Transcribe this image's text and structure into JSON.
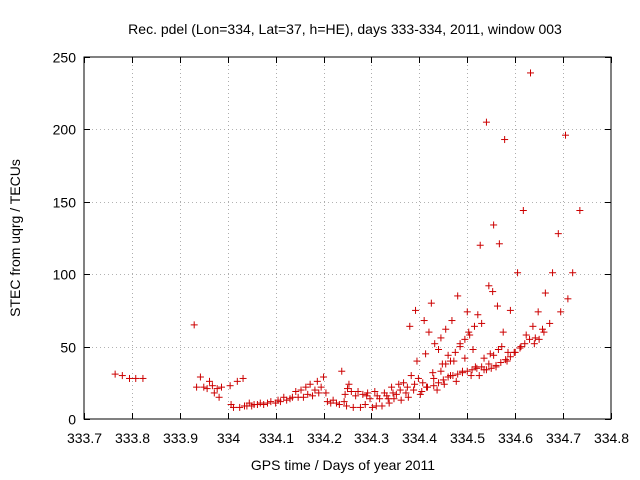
{
  "chart_data": {
    "type": "scatter",
    "title": "Rec. pdel (Lon=334, Lat=37, h=HE), days 333-334, 2011, window 003",
    "xlabel": "GPS time / Days of year 2011",
    "ylabel": "STEC from uqrg / TECUs",
    "xlim": [
      333.7,
      334.8
    ],
    "ylim": [
      0,
      250
    ],
    "xticks": [
      333.7,
      333.8,
      333.9,
      334,
      334.1,
      334.2,
      334.3,
      334.4,
      334.5,
      334.6,
      334.7,
      334.8
    ],
    "xtick_labels": [
      "333.7",
      "333.8",
      "333.9",
      "334",
      "334.1",
      "334.2",
      "334.3",
      "334.4",
      "334.5",
      "334.6",
      "334.7",
      "334.8"
    ],
    "yticks": [
      0,
      50,
      100,
      150,
      200,
      250
    ],
    "ytick_labels": [
      "0",
      "50",
      "100",
      "150",
      "200",
      "250"
    ],
    "grid": true,
    "marker": "plus",
    "color": "#cc0000",
    "points": [
      [
        333.765,
        31
      ],
      [
        333.78,
        30
      ],
      [
        333.795,
        28
      ],
      [
        333.808,
        28
      ],
      [
        333.823,
        28
      ],
      [
        333.93,
        65
      ],
      [
        333.935,
        22
      ],
      [
        333.943,
        29
      ],
      [
        333.95,
        22
      ],
      [
        333.957,
        21
      ],
      [
        333.962,
        26
      ],
      [
        333.968,
        23
      ],
      [
        333.972,
        18
      ],
      [
        333.978,
        21
      ],
      [
        333.982,
        15
      ],
      [
        333.987,
        22
      ],
      [
        334.005,
        23
      ],
      [
        334.007,
        10
      ],
      [
        334.012,
        8
      ],
      [
        334.02,
        26
      ],
      [
        334.025,
        8
      ],
      [
        334.032,
        28
      ],
      [
        334.035,
        9
      ],
      [
        334.04,
        9
      ],
      [
        334.045,
        11
      ],
      [
        334.05,
        9
      ],
      [
        334.055,
        10
      ],
      [
        334.062,
        10
      ],
      [
        334.068,
        11
      ],
      [
        334.075,
        10
      ],
      [
        334.083,
        11
      ],
      [
        334.09,
        12
      ],
      [
        334.1,
        11
      ],
      [
        334.105,
        13
      ],
      [
        334.11,
        12
      ],
      [
        334.117,
        15
      ],
      [
        334.123,
        13
      ],
      [
        334.13,
        14
      ],
      [
        334.135,
        15
      ],
      [
        334.142,
        19
      ],
      [
        334.147,
        15
      ],
      [
        334.153,
        20
      ],
      [
        334.158,
        15
      ],
      [
        334.163,
        22
      ],
      [
        334.167,
        17
      ],
      [
        334.172,
        24
      ],
      [
        334.177,
        16
      ],
      [
        334.182,
        20
      ],
      [
        334.187,
        26
      ],
      [
        334.19,
        18
      ],
      [
        334.195,
        22
      ],
      [
        334.2,
        29
      ],
      [
        334.205,
        18
      ],
      [
        334.208,
        12
      ],
      [
        334.215,
        11
      ],
      [
        334.22,
        13
      ],
      [
        334.227,
        11
      ],
      [
        334.233,
        10
      ],
      [
        334.238,
        33
      ],
      [
        334.243,
        12
      ],
      [
        334.248,
        9
      ],
      [
        334.253,
        24
      ],
      [
        334.258,
        19
      ],
      [
        334.262,
        8
      ],
      [
        334.267,
        16
      ],
      [
        334.272,
        19
      ],
      [
        334.277,
        8
      ],
      [
        334.282,
        17
      ],
      [
        334.287,
        10
      ],
      [
        334.292,
        18
      ],
      [
        334.297,
        14
      ],
      [
        334.302,
        8
      ],
      [
        334.307,
        19
      ],
      [
        334.312,
        16
      ],
      [
        334.317,
        14
      ],
      [
        334.322,
        9
      ],
      [
        334.327,
        18
      ],
      [
        334.332,
        16
      ],
      [
        334.337,
        11
      ],
      [
        334.342,
        22
      ],
      [
        334.347,
        14
      ],
      [
        334.352,
        17
      ],
      [
        334.357,
        24
      ],
      [
        334.362,
        13
      ],
      [
        334.367,
        25
      ],
      [
        334.372,
        18
      ],
      [
        334.377,
        15
      ],
      [
        334.38,
        64
      ],
      [
        334.383,
        30
      ],
      [
        334.388,
        20
      ],
      [
        334.392,
        75
      ],
      [
        334.395,
        40
      ],
      [
        334.398,
        28
      ],
      [
        334.402,
        17
      ],
      [
        334.407,
        25
      ],
      [
        334.41,
        68
      ],
      [
        334.413,
        45
      ],
      [
        334.417,
        22
      ],
      [
        334.42,
        60
      ],
      [
        334.425,
        80
      ],
      [
        334.428,
        32
      ],
      [
        334.432,
        52
      ],
      [
        334.437,
        20
      ],
      [
        334.44,
        48
      ],
      [
        334.445,
        56
      ],
      [
        334.448,
        38
      ],
      [
        334.452,
        24
      ],
      [
        334.455,
        62
      ],
      [
        334.46,
        44
      ],
      [
        334.465,
        30
      ],
      [
        334.468,
        68
      ],
      [
        334.472,
        40
      ],
      [
        334.477,
        26
      ],
      [
        334.48,
        85
      ],
      [
        334.485,
        52
      ],
      [
        334.49,
        33
      ],
      [
        334.495,
        42
      ],
      [
        334.5,
        74
      ],
      [
        334.503,
        60
      ],
      [
        334.508,
        30
      ],
      [
        334.512,
        48
      ],
      [
        334.517,
        36
      ],
      [
        334.522,
        72
      ],
      [
        334.527,
        120
      ],
      [
        334.53,
        66
      ],
      [
        334.535,
        34
      ],
      [
        334.54,
        205
      ],
      [
        334.545,
        92
      ],
      [
        334.548,
        45
      ],
      [
        334.553,
        88
      ],
      [
        334.555,
        134
      ],
      [
        334.56,
        36
      ],
      [
        334.563,
        78
      ],
      [
        334.567,
        121
      ],
      [
        334.572,
        50
      ],
      [
        334.578,
        193
      ],
      [
        334.583,
        40
      ],
      [
        334.59,
        75
      ],
      [
        334.598,
        46
      ],
      [
        334.605,
        101
      ],
      [
        334.612,
        50
      ],
      [
        334.617,
        144
      ],
      [
        334.623,
        58
      ],
      [
        334.632,
        239
      ],
      [
        334.637,
        64
      ],
      [
        334.642,
        56
      ],
      [
        334.648,
        74
      ],
      [
        334.657,
        62
      ],
      [
        334.663,
        87
      ],
      [
        334.672,
        66
      ],
      [
        334.678,
        101
      ],
      [
        334.69,
        128
      ],
      [
        334.695,
        74
      ],
      [
        334.705,
        196
      ],
      [
        334.71,
        83
      ],
      [
        334.72,
        101
      ],
      [
        334.735,
        144
      ],
      [
        334.245,
        17
      ],
      [
        334.25,
        21
      ],
      [
        334.29,
        16
      ],
      [
        334.31,
        9
      ],
      [
        334.335,
        14
      ],
      [
        334.345,
        18
      ],
      [
        334.36,
        20
      ],
      [
        334.375,
        22
      ],
      [
        334.39,
        24
      ],
      [
        334.405,
        19
      ],
      [
        334.415,
        22
      ],
      [
        334.43,
        23
      ],
      [
        334.44,
        25
      ],
      [
        334.45,
        27
      ],
      [
        334.46,
        29
      ],
      [
        334.47,
        30
      ],
      [
        334.48,
        31
      ],
      [
        334.49,
        32
      ],
      [
        334.5,
        33
      ],
      [
        334.51,
        34
      ],
      [
        334.52,
        35
      ],
      [
        334.53,
        36
      ],
      [
        334.54,
        34
      ],
      [
        334.55,
        35
      ],
      [
        334.56,
        37
      ],
      [
        334.57,
        39
      ],
      [
        334.58,
        41
      ],
      [
        334.59,
        43
      ],
      [
        334.6,
        46
      ],
      [
        334.61,
        49
      ],
      [
        334.62,
        52
      ],
      [
        334.63,
        55
      ],
      [
        334.64,
        52
      ],
      [
        334.65,
        55
      ],
      [
        334.66,
        60
      ],
      [
        334.43,
        28
      ],
      [
        334.445,
        33
      ],
      [
        334.455,
        38
      ],
      [
        334.465,
        40
      ],
      [
        334.475,
        46
      ],
      [
        334.485,
        50
      ],
      [
        334.495,
        55
      ],
      [
        334.505,
        58
      ],
      [
        334.515,
        64
      ],
      [
        334.525,
        30
      ],
      [
        334.535,
        42
      ],
      [
        334.545,
        38
      ],
      [
        334.555,
        44
      ],
      [
        334.565,
        48
      ],
      [
        334.575,
        60
      ],
      [
        334.585,
        46
      ]
    ]
  }
}
